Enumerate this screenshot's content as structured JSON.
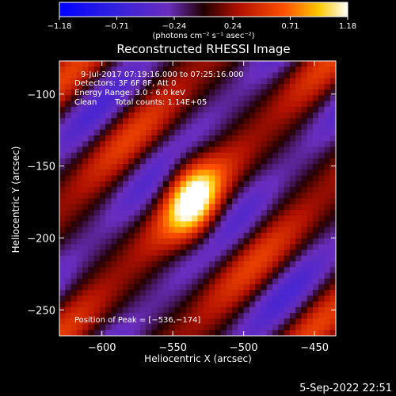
{
  "chart_data": {
    "type": "heatmap",
    "title": "Reconstructed RHESSI Image",
    "xlabel": "Heliocentric X (arcsec)",
    "ylabel": "Heliocentric Y (arcsec)",
    "xlim": [
      -630,
      -435
    ],
    "ylim": [
      -268,
      -77
    ],
    "x_ticks": [
      -600,
      -550,
      -500,
      -450
    ],
    "y_ticks": [
      -250,
      -200,
      -150,
      -100
    ],
    "x_tick_labels": [
      "−600",
      "−550",
      "−500",
      "−450"
    ],
    "y_tick_labels": [
      "−250",
      "−200",
      "−150",
      "−100"
    ],
    "colorbar": {
      "min": -1.18,
      "max": 1.18,
      "ticks": [
        -1.18,
        -0.71,
        -0.24,
        0.24,
        0.71,
        1.18
      ],
      "tick_labels": [
        "−1.18",
        "−0.71",
        "−0.24",
        "0.24",
        "0.71",
        "1.18"
      ],
      "unit_label": "(photons cm⁻² s⁻¹ asec⁻²)",
      "colormap": "blue-purple-red-yellow-white"
    },
    "annotations": {
      "time_range": "9-Jul-2017 07:19:16.000 to 07:25:16.000",
      "detectors": "Detectors: 3F 6F 8F, Att 0",
      "energy_range": "Energy Range: 3.0 - 6.0 keV",
      "algorithm": "Clean",
      "total_counts": "Total counts: 1.14E+05",
      "peak_position": "Position of Peak = [−536,−174]"
    },
    "peak": {
      "x": -536,
      "y": -174,
      "value": 1.18
    },
    "stripe_angle_deg": 45,
    "stripe_spacing_arcsec": 62
  },
  "timestamp": "5-Sep-2022 22:51"
}
